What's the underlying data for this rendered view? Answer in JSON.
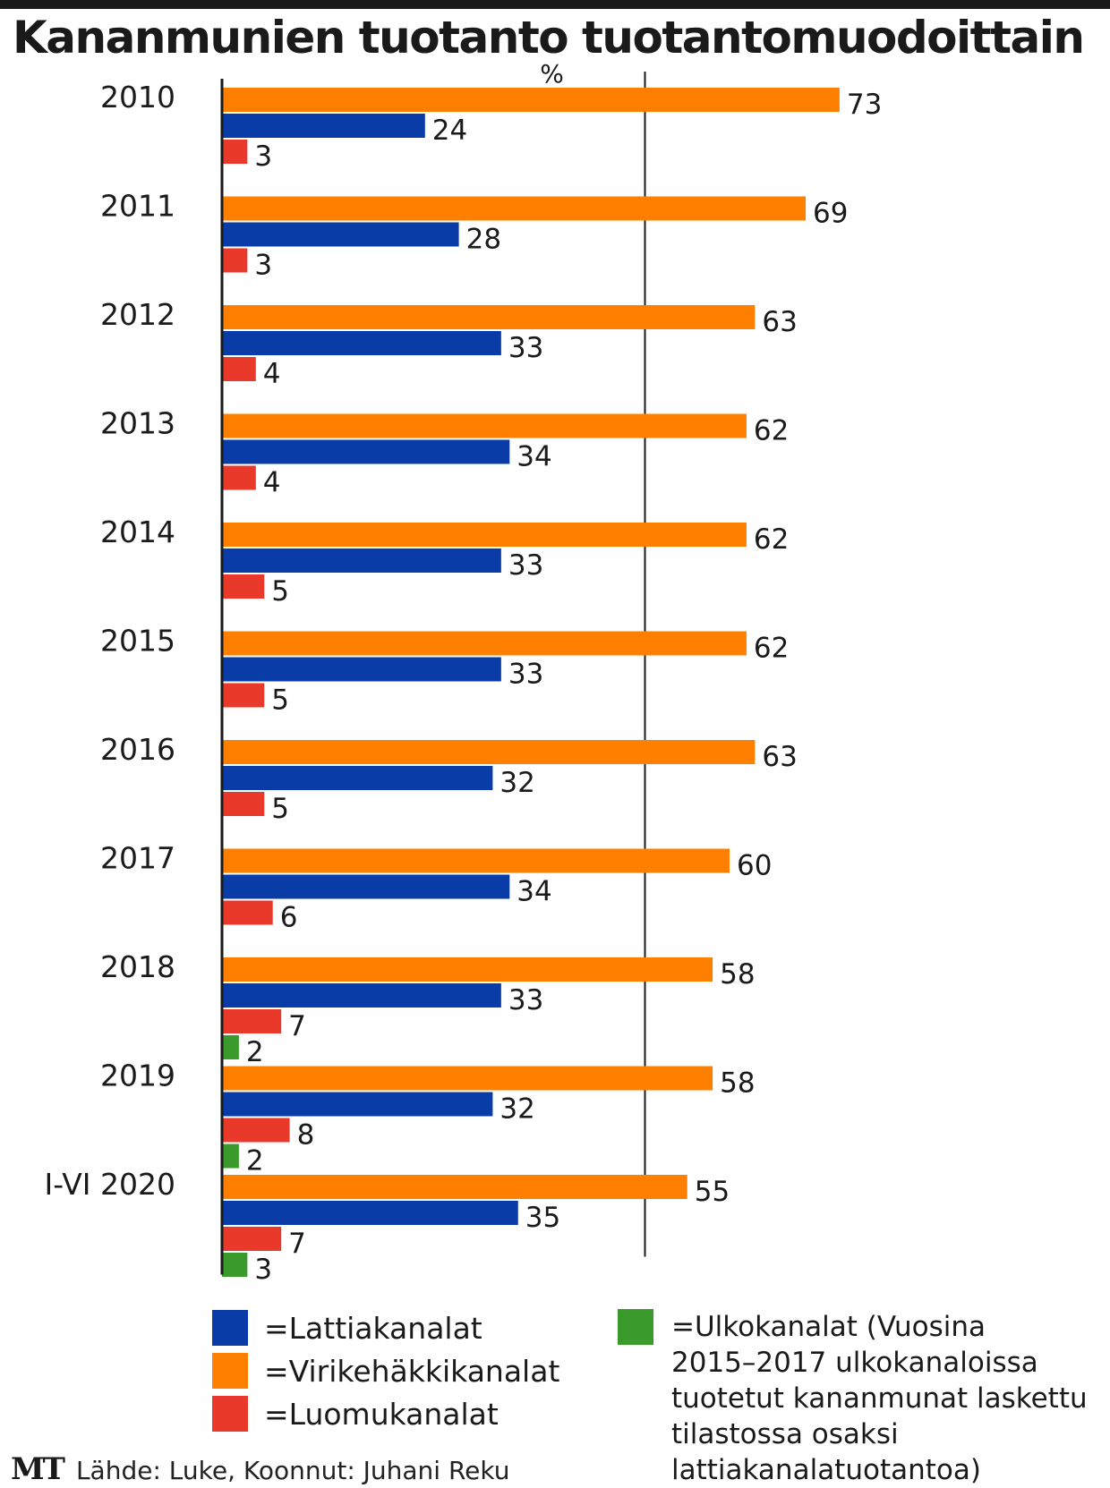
{
  "title": "Kananmunien tuotanto tuotantomuodoittain",
  "chart_data": {
    "type": "bar",
    "orientation": "horizontal",
    "unit_label": "%",
    "categories": [
      "2010",
      "2011",
      "2012",
      "2013",
      "2014",
      "2015",
      "2016",
      "2017",
      "2018",
      "2019",
      "I-VI 2020"
    ],
    "series": [
      {
        "key": "virike",
        "color": "#ff8000",
        "values": [
          73,
          69,
          63,
          62,
          62,
          62,
          63,
          60,
          58,
          58,
          55
        ]
      },
      {
        "key": "lattia",
        "color": "#0a3ca8",
        "values": [
          24,
          28,
          33,
          34,
          33,
          33,
          32,
          34,
          33,
          32,
          35
        ]
      },
      {
        "key": "luomu",
        "color": "#e8392b",
        "values": [
          3,
          3,
          4,
          4,
          5,
          5,
          5,
          6,
          7,
          8,
          7
        ]
      },
      {
        "key": "ulko",
        "color": "#3a9a2b",
        "values": [
          null,
          null,
          null,
          null,
          null,
          null,
          null,
          null,
          2,
          2,
          3
        ]
      }
    ],
    "xlim": [
      0,
      75
    ],
    "reference_line": 50,
    "grid": false
  },
  "legend": {
    "lattia": "=Lattiakanalat",
    "virike": "=Virikehäkkikanalat",
    "luomu": "=Luomukanalat",
    "ulko_lines": [
      "=Ulkokanalat (Vuosina",
      "2015–2017 ulkokanaloissa",
      "tuotetut kananmunat laskettu",
      "tilastossa osaksi",
      "lattiakanalatuotantoa)"
    ]
  },
  "colors": {
    "lattia": "#0a3ca8",
    "virike": "#ff8000",
    "luomu": "#e8392b",
    "ulko": "#3a9a2b"
  },
  "footer": {
    "logo": "MT",
    "source": "Lähde: Luke, Koonnut: Juhani Reku"
  }
}
